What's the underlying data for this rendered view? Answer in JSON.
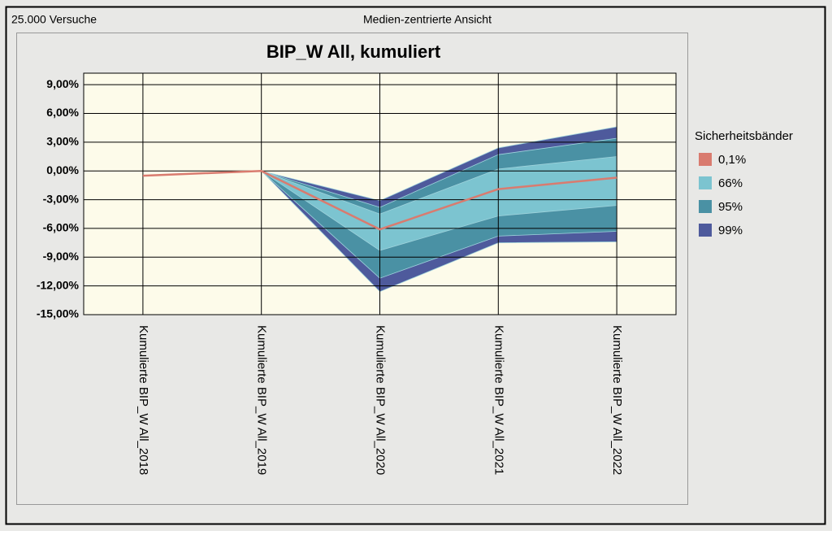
{
  "header": {
    "left": "25.000 Versuche",
    "center": "Medien-zentrierte Ansicht"
  },
  "chart_data": {
    "type": "band",
    "title": "BIP_W All, kumuliert",
    "legend_title": "Sicherheitsbänder",
    "categories": [
      "Kumulierte BIP_W All_2018",
      "Kumulierte BIP_W All_2019",
      "Kumulierte BIP_W All_2020",
      "Kumulierte BIP_W All_2021",
      "Kumulierte BIP_W All_2022"
    ],
    "ylim": [
      -15,
      10.2
    ],
    "yticks": [
      {
        "value": -15,
        "label": "-15,00%"
      },
      {
        "value": -12,
        "label": "-12,00%"
      },
      {
        "value": -9,
        "label": "-9,00%"
      },
      {
        "value": -6,
        "label": "-6,00%"
      },
      {
        "value": -3,
        "label": "-3,00%"
      },
      {
        "value": 0,
        "label": "0,00%"
      },
      {
        "value": 3,
        "label": "3,00%"
      },
      {
        "value": 6,
        "label": "6,00%"
      },
      {
        "value": 9,
        "label": "9,00%"
      }
    ],
    "grid": true,
    "series": [
      {
        "name": "0,1%",
        "color": "#d97b6f",
        "values": [
          -0.5,
          0,
          -6.1,
          -1.9,
          -0.7
        ]
      },
      {
        "name": "66%",
        "color": "#7cc4d0",
        "lower": [
          null,
          0,
          -8.3,
          -4.7,
          -3.6
        ],
        "upper": [
          null,
          0,
          -4.5,
          0.2,
          1.5
        ]
      },
      {
        "name": "95%",
        "color": "#4a91a4",
        "lower": [
          null,
          0,
          -11.2,
          -6.8,
          -6.3
        ],
        "upper": [
          null,
          0,
          -3.8,
          1.7,
          3.4
        ]
      },
      {
        "name": "99%",
        "color": "#4e5a9c",
        "lower": [
          null,
          0,
          -12.6,
          -7.5,
          -7.4
        ],
        "upper": [
          null,
          0,
          -3.1,
          2.4,
          4.6
        ]
      }
    ]
  }
}
